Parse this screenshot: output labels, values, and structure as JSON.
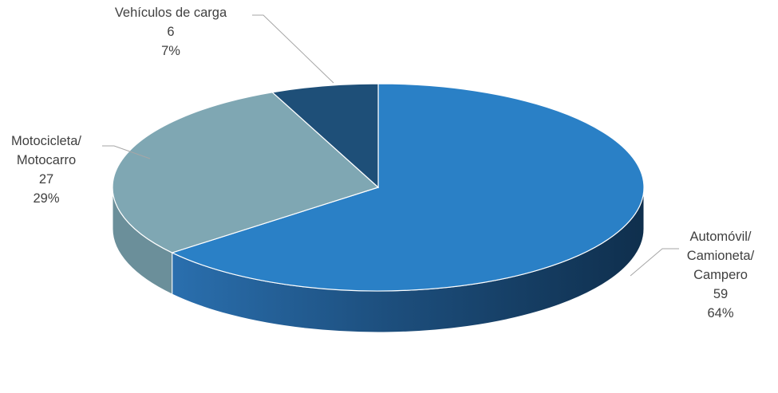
{
  "chart_data": {
    "type": "pie",
    "style": "3d",
    "title": "",
    "slices": [
      {
        "label_lines": [
          "Automóvil/",
          "Camioneta/",
          "Campero"
        ],
        "value": 59,
        "percent": "64%",
        "color": "#2a80c6",
        "side_color": "#1d5e99"
      },
      {
        "label_lines": [
          "Motocicleta/",
          "Motocarro"
        ],
        "value": 27,
        "percent": "29%",
        "color": "#7fa7b3",
        "side_color": "#6b8f9a"
      },
      {
        "label_lines": [
          "Vehículos de carga"
        ],
        "value": 6,
        "percent": "7%",
        "color": "#1e4f78",
        "side_color": "#1a405f"
      }
    ],
    "legend": "none",
    "data_labels": "category, value, percentage"
  }
}
